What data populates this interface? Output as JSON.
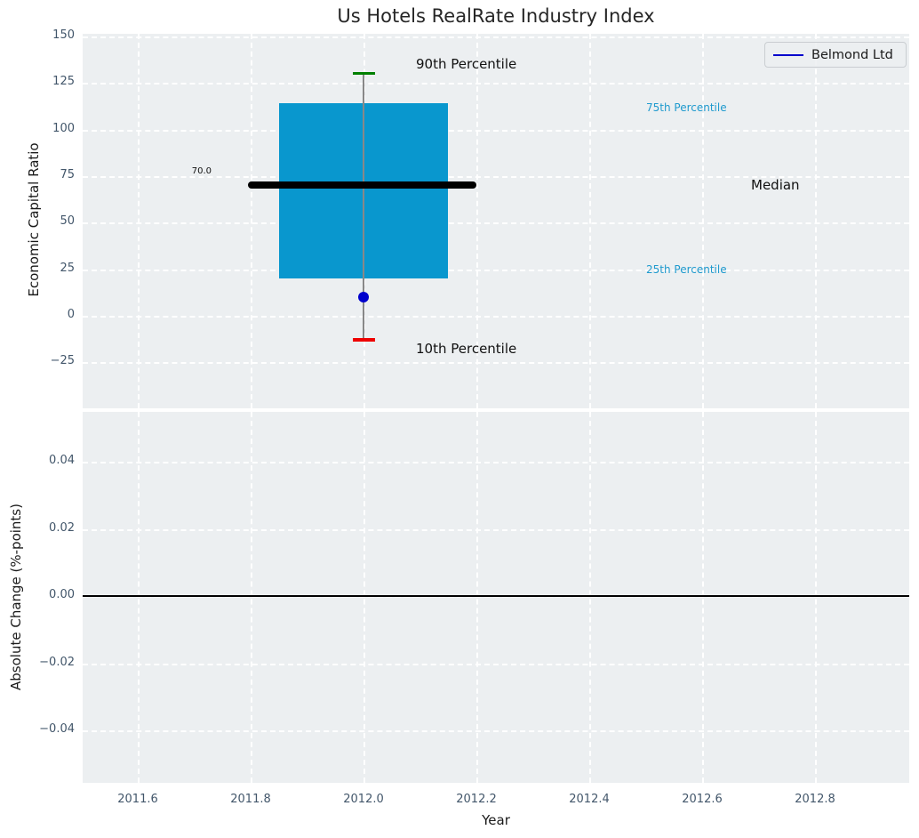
{
  "title": "Us Hotels RealRate Industry Index",
  "legend": {
    "label": "Belmond Ltd",
    "line_color": "#0000cc"
  },
  "annotations": {
    "p90_label": "90th Percentile",
    "p75_label": "75th Percentile",
    "median_label": "Median",
    "p25_label": "25th Percentile",
    "p10_label": "10th Percentile",
    "median_value_label": "70.0"
  },
  "colors": {
    "axes_bg": "#eceff1",
    "grid": "#ffffff",
    "box_fill": "#0997ce",
    "whisker": "#888888",
    "cap_90": "#008000",
    "cap_10": "#ee0000",
    "median_line": "#000000",
    "company_dot": "#0000cd",
    "cyan_text": "#1f9ace",
    "zero_line": "#000000",
    "tick_text": "#42566a"
  },
  "chart_data": [
    {
      "type": "box",
      "title": "Us Hotels RealRate Industry Index",
      "ylabel": "Economic Capital Ratio",
      "x_center": 2012,
      "box_x_range": [
        2011.85,
        2012.15
      ],
      "median_x_range": [
        2011.795,
        2012.2
      ],
      "percentiles": {
        "p10": -13,
        "p25": 20,
        "median": 70.0,
        "p75": 114,
        "p90": 130
      },
      "series": [
        {
          "name": "Belmond Ltd",
          "x": 2012,
          "value": 10
        }
      ],
      "ylim": [
        -50,
        151
      ],
      "xlim": [
        2011.5,
        2012.97
      ],
      "yticks_values": [
        150,
        125,
        100,
        75,
        50,
        25,
        0,
        -25
      ],
      "yticks_labels": [
        "150",
        "125",
        "100",
        "75",
        "50",
        "25",
        "0",
        "−25"
      ],
      "grid": true,
      "legend_position": "upper right"
    },
    {
      "type": "line",
      "ylabel": "Absolute Change (%-points)",
      "xlabel": "Year",
      "zero_line": 0.0,
      "series": [],
      "ylim": [
        -0.0555,
        0.0545
      ],
      "xlim": [
        2011.5,
        2012.97
      ],
      "yticks_values": [
        0.04,
        0.02,
        0.0,
        -0.02,
        -0.04
      ],
      "yticks_labels": [
        "0.04",
        "0.02",
        "0.00",
        "−0.02",
        "−0.04"
      ],
      "xticks_values": [
        2011.6,
        2011.8,
        2012.0,
        2012.2,
        2012.4,
        2012.6,
        2012.8
      ],
      "xticks_labels": [
        "2011.6",
        "2011.8",
        "2012.0",
        "2012.2",
        "2012.4",
        "2012.6",
        "2012.8"
      ],
      "grid": true
    }
  ]
}
